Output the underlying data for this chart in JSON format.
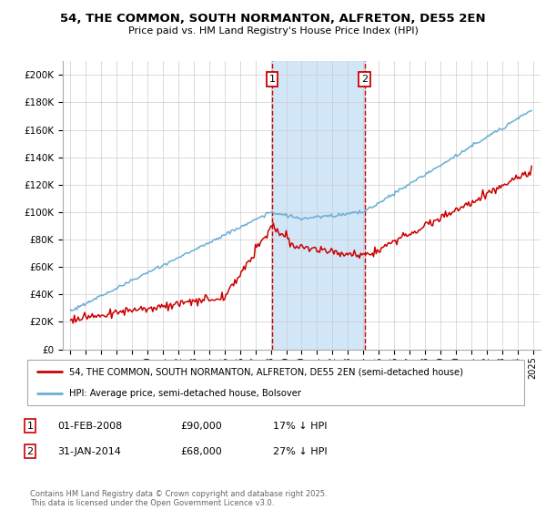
{
  "title": "54, THE COMMON, SOUTH NORMANTON, ALFRETON, DE55 2EN",
  "subtitle": "Price paid vs. HM Land Registry's House Price Index (HPI)",
  "footer": "Contains HM Land Registry data © Crown copyright and database right 2025.\nThis data is licensed under the Open Government Licence v3.0.",
  "legend_line1": "54, THE COMMON, SOUTH NORMANTON, ALFRETON, DE55 2EN (semi-detached house)",
  "legend_line2": "HPI: Average price, semi-detached house, Bolsover",
  "marker1_date": "01-FEB-2008",
  "marker1_price": "£90,000",
  "marker1_hpi": "17% ↓ HPI",
  "marker2_date": "31-JAN-2014",
  "marker2_price": "£68,000",
  "marker2_hpi": "27% ↓ HPI",
  "hpi_color": "#6aaed6",
  "price_color": "#cc0000",
  "marker_color": "#cc0000",
  "shade_color": "#cce4f5",
  "ylim": [
    0,
    210000
  ],
  "ytick_vals": [
    0,
    20000,
    40000,
    60000,
    80000,
    100000,
    120000,
    140000,
    160000,
    180000,
    200000
  ],
  "ytick_labels": [
    "£0",
    "£20K",
    "£40K",
    "£60K",
    "£80K",
    "£100K",
    "£120K",
    "£140K",
    "£160K",
    "£180K",
    "£200K"
  ],
  "xlim_start": 1994.5,
  "xlim_end": 2025.5,
  "marker1_x": 2008.08,
  "marker2_x": 2014.08,
  "grid_color": "#cccccc",
  "background_color": "#ffffff"
}
